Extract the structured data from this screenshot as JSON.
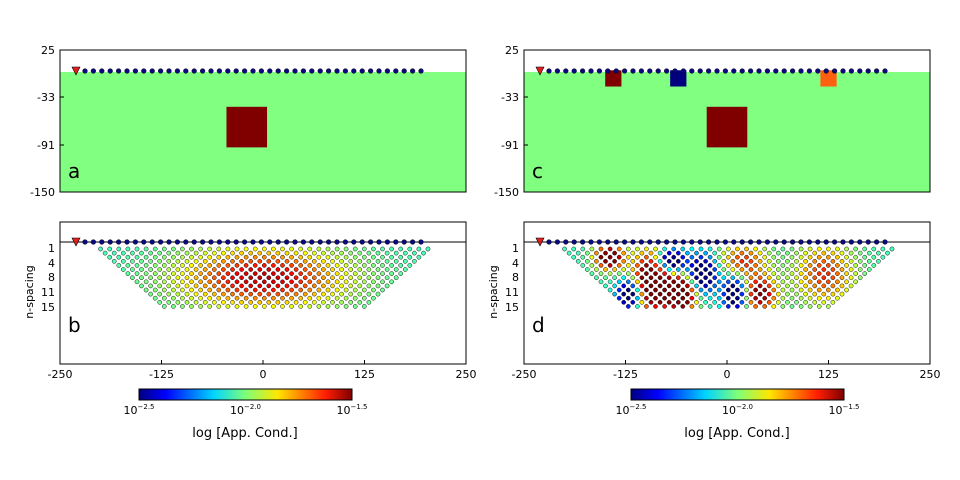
{
  "chart_data": [
    {
      "type": "heatmap",
      "panel_label": "a",
      "ylim": [
        -150,
        25
      ],
      "yticks": [
        "25",
        "-33",
        "-91",
        "-150"
      ],
      "background_color": "#80ff80",
      "electrode_color": "#0a0a80",
      "source_marker_color": "#e02020",
      "blocks": [
        {
          "x": [
            -45,
            5
          ],
          "y": [
            -45,
            -95
          ],
          "color": "#800000"
        }
      ]
    },
    {
      "type": "heatmap",
      "panel_label": "c",
      "ylim": [
        -150,
        25
      ],
      "yticks": [
        "25",
        "-33",
        "-91",
        "-150"
      ],
      "background_color": "#80ff80",
      "electrode_color": "#0a0a80",
      "source_marker_color": "#e02020",
      "blocks": [
        {
          "x": [
            -150,
            -130
          ],
          "y": [
            0,
            -20
          ],
          "color": "#800000"
        },
        {
          "x": [
            -70,
            -50
          ],
          "y": [
            0,
            -20
          ],
          "color": "#00007f"
        },
        {
          "x": [
            -25,
            25
          ],
          "y": [
            -45,
            -95
          ],
          "color": "#800000"
        },
        {
          "x": [
            115,
            135
          ],
          "y": [
            0,
            -20
          ],
          "color": "#ff6010"
        }
      ]
    },
    {
      "type": "scatter",
      "panel_label": "b",
      "ylabel": "n-spacing",
      "yticks": [
        "1",
        "4",
        "8",
        "11",
        "15"
      ],
      "xticks": [
        "-250",
        "-125",
        "0",
        "125",
        "250"
      ],
      "xlim": [
        -250,
        250
      ],
      "anomalies": [
        {
          "x": 0,
          "y": 8,
          "sx": 70,
          "sy": 5,
          "amp": 0.5
        }
      ]
    },
    {
      "type": "scatter",
      "panel_label": "d",
      "ylabel": "n-spacing",
      "yticks": [
        "1",
        "4",
        "8",
        "11",
        "15"
      ],
      "xticks": [
        "-250",
        "-125",
        "0",
        "125",
        "250"
      ],
      "xlim": [
        -250,
        250
      ],
      "anomalies": [
        {
          "x": -145,
          "y": 3,
          "sx": 12,
          "sy": 2,
          "amp": 0.8
        },
        {
          "x": -120,
          "y": 12,
          "sx": 10,
          "sy": 2.5,
          "amp": -0.8
        },
        {
          "x": -90,
          "y": 9,
          "sx": 18,
          "sy": 5,
          "amp": 0.9
        },
        {
          "x": -70,
          "y": 4,
          "sx": 12,
          "sy": 2,
          "amp": -0.9
        },
        {
          "x": -55,
          "y": 12,
          "sx": 12,
          "sy": 3,
          "amp": 0.8
        },
        {
          "x": -30,
          "y": 7,
          "sx": 12,
          "sy": 3,
          "amp": -0.7
        },
        {
          "x": 10,
          "y": 12,
          "sx": 10,
          "sy": 3,
          "amp": -0.7
        },
        {
          "x": 20,
          "y": 4,
          "sx": 20,
          "sy": 3,
          "amp": 0.4
        },
        {
          "x": 40,
          "y": 12,
          "sx": 15,
          "sy": 3,
          "amp": 0.6
        },
        {
          "x": 120,
          "y": 7,
          "sx": 25,
          "sy": 5,
          "amp": 0.4
        }
      ]
    }
  ],
  "colorbars": [
    {
      "label": "log [App. Cond.]",
      "ticks": [
        "10",
        "10",
        "10"
      ],
      "exponents": [
        "−2.5",
        "−2.0",
        "−1.5"
      ]
    },
    {
      "label": "log [App. Cond.]",
      "ticks": [
        "10",
        "10",
        "10"
      ],
      "exponents": [
        "−2.5",
        "−2.0",
        "−1.5"
      ]
    }
  ]
}
